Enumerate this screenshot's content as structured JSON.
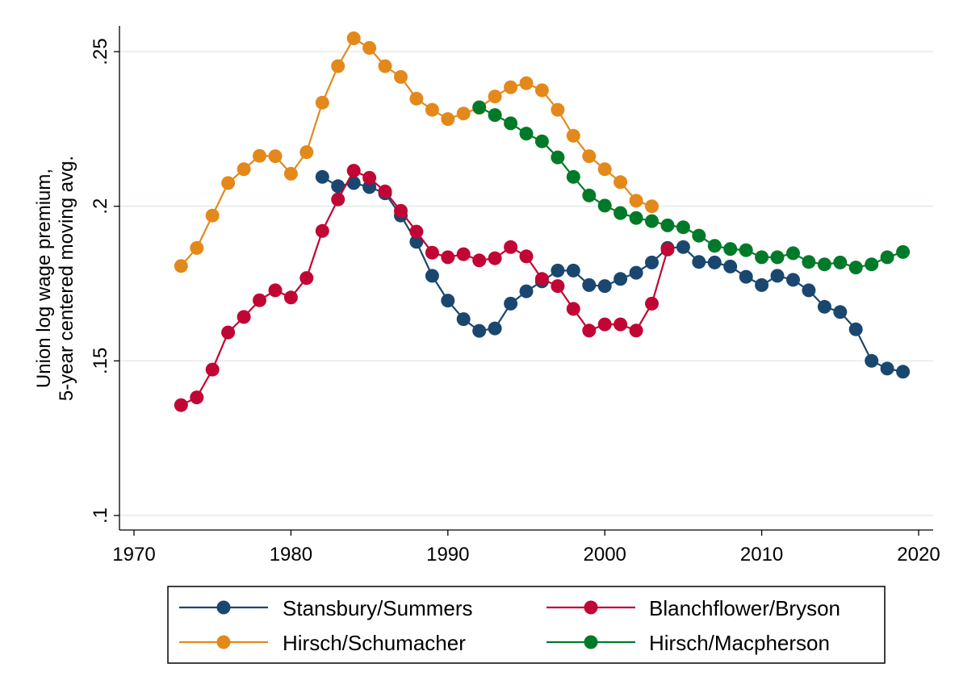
{
  "chart_data": {
    "type": "line",
    "title": "",
    "xlabel": "",
    "ylabel_lines": [
      "Union log wage premium,",
      "5-year centered moving avg."
    ],
    "xlim": [
      1969,
      2021
    ],
    "ylim": [
      0.095,
      0.258
    ],
    "x_ticks": [
      1970,
      1980,
      1990,
      2000,
      2010,
      2020
    ],
    "x_tick_labels": [
      "1970",
      "1980",
      "1990",
      "2000",
      "2010",
      "2020"
    ],
    "y_ticks": [
      0.1,
      0.15,
      0.2,
      0.25
    ],
    "y_tick_labels": [
      ".1",
      ".15",
      ".2",
      ".25"
    ],
    "grid": "horizontal",
    "legend_position": "bottom",
    "series": [
      {
        "name": "Stansbury/Summers",
        "color": "#1a476f",
        "x": [
          1982,
          1983,
          1984,
          1985,
          1986,
          1987,
          1988,
          1989,
          1990,
          1991,
          1992,
          1993,
          1994,
          1995,
          1996,
          1997,
          1998,
          1999,
          2000,
          2001,
          2002,
          2003,
          2004,
          2005,
          2006,
          2007,
          2008,
          2009,
          2010,
          2011,
          2012,
          2013,
          2014,
          2015,
          2016,
          2017,
          2018,
          2019
        ],
        "y": [
          0.2095,
          0.2065,
          0.2075,
          0.2062,
          0.2042,
          0.197,
          0.1885,
          0.1775,
          0.1695,
          0.1635,
          0.1597,
          0.1605,
          0.1685,
          0.1725,
          0.1757,
          0.1792,
          0.1792,
          0.1745,
          0.1742,
          0.1765,
          0.1785,
          0.1818,
          0.1865,
          0.1868,
          0.182,
          0.1818,
          0.1805,
          0.1772,
          0.1745,
          0.1775,
          0.1762,
          0.1728,
          0.1675,
          0.1658,
          0.1602,
          0.15,
          0.1475,
          0.1465
        ]
      },
      {
        "name": "Blanchflower/Bryson",
        "color": "#c10534",
        "x": [
          1973,
          1974,
          1975,
          1976,
          1977,
          1978,
          1979,
          1980,
          1981,
          1982,
          1983,
          1984,
          1985,
          1986,
          1987,
          1988,
          1989,
          1990,
          1991,
          1992,
          1993,
          1994,
          1995,
          1996,
          1997,
          1998,
          1999,
          2000,
          2001,
          2002,
          2003,
          2004
        ],
        "y": [
          0.1357,
          0.1382,
          0.1472,
          0.1592,
          0.1642,
          0.1696,
          0.1728,
          0.1705,
          0.1768,
          0.192,
          0.2022,
          0.2115,
          0.2092,
          0.2048,
          0.1985,
          0.1918,
          0.185,
          0.1835,
          0.1845,
          0.1825,
          0.1832,
          0.1868,
          0.1838,
          0.1765,
          0.1742,
          0.1668,
          0.1598,
          0.1618,
          0.1618,
          0.1598,
          0.1685,
          0.186
        ]
      },
      {
        "name": "Hirsch/Schumacher",
        "color": "#e3891b",
        "x": [
          1973,
          1974,
          1975,
          1976,
          1977,
          1978,
          1979,
          1980,
          1981,
          1982,
          1983,
          1984,
          1985,
          1986,
          1987,
          1988,
          1989,
          1990,
          1991,
          1992,
          1993,
          1994,
          1995,
          1996,
          1997,
          1998,
          1999,
          2000,
          2001,
          2002,
          2003
        ],
        "y": [
          0.1807,
          0.1865,
          0.197,
          0.2075,
          0.212,
          0.2163,
          0.2162,
          0.2105,
          0.2175,
          0.2335,
          0.2453,
          0.2543,
          0.2512,
          0.2453,
          0.2418,
          0.2348,
          0.2312,
          0.2282,
          0.23,
          0.2318,
          0.2355,
          0.2385,
          0.2398,
          0.2375,
          0.2312,
          0.2228,
          0.2162,
          0.212,
          0.2078,
          0.2018,
          0.2
        ]
      },
      {
        "name": "Hirsch/Macpherson",
        "color": "#007a29",
        "x": [
          1992,
          1993,
          1994,
          1995,
          1996,
          1997,
          1998,
          1999,
          2000,
          2001,
          2002,
          2003,
          2004,
          2005,
          2006,
          2007,
          2008,
          2009,
          2010,
          2011,
          2012,
          2013,
          2014,
          2015,
          2016,
          2017,
          2018,
          2019
        ],
        "y": [
          0.232,
          0.2295,
          0.2268,
          0.2235,
          0.221,
          0.2158,
          0.2095,
          0.2035,
          0.2002,
          0.1978,
          0.1962,
          0.1952,
          0.1938,
          0.1932,
          0.1905,
          0.1872,
          0.1862,
          0.1858,
          0.1835,
          0.1835,
          0.1848,
          0.182,
          0.1812,
          0.1818,
          0.1802,
          0.1812,
          0.1835,
          0.1852
        ]
      }
    ]
  }
}
